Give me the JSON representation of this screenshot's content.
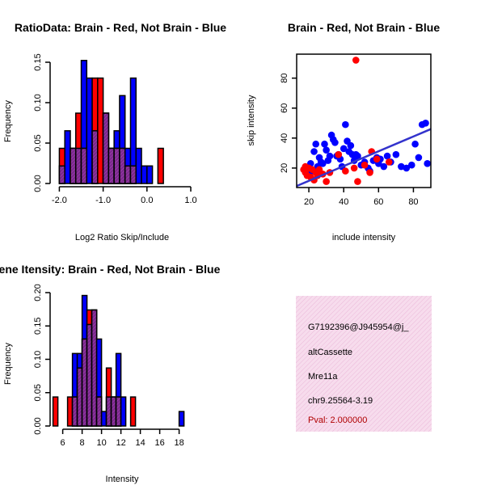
{
  "chart_data": [
    {
      "type": "bar",
      "title": "RatioData: Brain - Red, Not Brain - Blue",
      "xlabel": "Log2 Ratio Skip/Include",
      "ylabel": "Frequency",
      "xlim": [
        -2.1,
        1.0
      ],
      "ylim": [
        0,
        0.16
      ],
      "xticks": [
        -2.0,
        -1.0,
        0.0,
        1.0
      ],
      "xtick_labels": [
        "-2.0",
        "-1.0",
        "0.0",
        "1.0"
      ],
      "yticks": [
        0.0,
        0.05,
        0.1,
        0.15
      ],
      "ytick_labels": [
        "0.00",
        "0.05",
        "0.10",
        "0.15"
      ],
      "bin_start": -2.0,
      "bin_width": 0.125,
      "series": [
        {
          "name": "Brain",
          "color": "#ff0000",
          "values": [
            0.0435,
            0.0,
            0.0435,
            0.087,
            0.0435,
            0.0,
            0.1304,
            0.1304,
            0.087,
            0.0435,
            0.0435,
            0.0435,
            0.0217,
            0.0217,
            0.0,
            0.0,
            0.0,
            0.0,
            0.0435
          ]
        },
        {
          "name": "Not Brain",
          "color": "#0000ff",
          "values": [
            0.0217,
            0.0652,
            0.0435,
            0.0435,
            0.1522,
            0.1304,
            0.0652,
            0.0,
            0.087,
            0.0435,
            0.0652,
            0.1087,
            0.0435,
            0.1304,
            0.0435,
            0.0217,
            0.0217,
            0.0,
            0.0
          ]
        }
      ]
    },
    {
      "type": "scatter",
      "title": "Brain - Red, Not Brain - Blue",
      "xlabel": "include intensity",
      "ylabel": "skip intensity",
      "xlim": [
        13,
        90
      ],
      "ylim": [
        7,
        96
      ],
      "xticks": [
        20,
        40,
        60,
        80
      ],
      "xtick_labels": [
        "20",
        "40",
        "60",
        "80"
      ],
      "yticks": [
        20,
        40,
        60,
        80
      ],
      "ytick_labels": [
        "20",
        "40",
        "60",
        "80"
      ],
      "fit_line": {
        "color": "#3333cc",
        "x": [
          13,
          90
        ],
        "y": [
          8,
          46
        ]
      },
      "series": [
        {
          "name": "Brain",
          "color": "#ff0000",
          "points": [
            [
              17,
              19
            ],
            [
              18,
              17
            ],
            [
              19,
              15
            ],
            [
              20,
              20
            ],
            [
              21,
              14
            ],
            [
              22,
              19
            ],
            [
              23,
              12
            ],
            [
              24,
              17
            ],
            [
              25,
              15
            ],
            [
              26,
              19
            ],
            [
              28,
              16
            ],
            [
              30,
              11
            ],
            [
              32,
              17
            ],
            [
              37,
              29
            ],
            [
              41,
              18
            ],
            [
              47,
              92
            ],
            [
              48,
              11
            ],
            [
              52,
              22
            ],
            [
              55,
              17
            ],
            [
              56,
              31
            ],
            [
              59,
              26
            ],
            [
              66,
              24
            ],
            [
              46,
              20
            ],
            [
              18,
              21
            ]
          ]
        },
        {
          "name": "Not Brain",
          "color": "#0000ff",
          "points": [
            [
              19,
              17
            ],
            [
              21,
              23
            ],
            [
              22,
              18
            ],
            [
              23,
              31
            ],
            [
              24,
              36
            ],
            [
              25,
              21
            ],
            [
              26,
              27
            ],
            [
              27,
              24
            ],
            [
              28,
              23
            ],
            [
              29,
              36
            ],
            [
              30,
              32
            ],
            [
              31,
              25
            ],
            [
              32,
              28
            ],
            [
              33,
              42
            ],
            [
              34,
              39
            ],
            [
              35,
              37
            ],
            [
              36,
              28
            ],
            [
              37,
              29
            ],
            [
              38,
              26
            ],
            [
              40,
              33
            ],
            [
              41,
              49
            ],
            [
              42,
              38
            ],
            [
              43,
              31
            ],
            [
              44,
              35
            ],
            [
              45,
              29
            ],
            [
              46,
              25
            ],
            [
              47,
              29
            ],
            [
              48,
              28
            ],
            [
              50,
              22
            ],
            [
              52,
              24
            ],
            [
              54,
              20
            ],
            [
              55,
              18
            ],
            [
              57,
              25
            ],
            [
              59,
              27
            ],
            [
              61,
              26
            ],
            [
              63,
              21
            ],
            [
              65,
              28
            ],
            [
              67,
              24
            ],
            [
              70,
              29
            ],
            [
              73,
              21
            ],
            [
              76,
              20
            ],
            [
              79,
              22
            ],
            [
              81,
              36
            ],
            [
              83,
              27
            ],
            [
              85,
              49
            ],
            [
              87,
              50
            ],
            [
              88,
              23
            ],
            [
              39,
              21
            ],
            [
              60,
              23
            ]
          ]
        }
      ]
    },
    {
      "type": "bar",
      "title": "Gene Itensity: Brain - Red, Not Brain - Blue",
      "xlabel": "Intensity",
      "ylabel": "Frequency",
      "xlim": [
        5.2,
        19.2
      ],
      "ylim": [
        0,
        0.2
      ],
      "xticks": [
        6,
        8,
        10,
        12,
        14,
        16,
        18
      ],
      "xtick_labels": [
        "6",
        "8",
        "10",
        "12",
        "14",
        "16",
        "18"
      ],
      "yticks": [
        0.0,
        0.05,
        0.1,
        0.15,
        0.2
      ],
      "ytick_labels": [
        "0.00",
        "0.05",
        "0.10",
        "0.15",
        "0.20"
      ],
      "bin_start": 5.0,
      "bin_width": 0.5,
      "series": [
        {
          "name": "Brain",
          "color": "#ff0000",
          "values": [
            0.0435,
            0.0,
            0.0,
            0.0435,
            0.0435,
            0.087,
            0.1304,
            0.174,
            0.174,
            0.0435,
            0.0,
            0.087,
            0.0435,
            0.0435,
            0.0,
            0.0,
            0.0435,
            0.0,
            0.0,
            0.0,
            0.0,
            0.0,
            0.0,
            0.0,
            0.0,
            0.0,
            0.0,
            0.0
          ]
        },
        {
          "name": "Not Brain",
          "color": "#0000ff",
          "values": [
            0.0,
            0.0,
            0.0,
            0.0,
            0.1087,
            0.1087,
            0.1957,
            0.1522,
            0.1739,
            0.1304,
            0.0217,
            0.0435,
            0.0435,
            0.1087,
            0.0435,
            0.0,
            0.0,
            0.0,
            0.0,
            0.0,
            0.0,
            0.0,
            0.0,
            0.0,
            0.0,
            0.0,
            0.0217,
            0.0
          ]
        }
      ]
    }
  ],
  "info_panel": {
    "lines": [
      "G7192396@J945954@j_",
      "altCassette",
      "Mre11a",
      "chr9.25564-3.19"
    ],
    "pval": "Pval: 2.000000",
    "pval_color": "#b00000",
    "background": "#f5d6ea"
  }
}
